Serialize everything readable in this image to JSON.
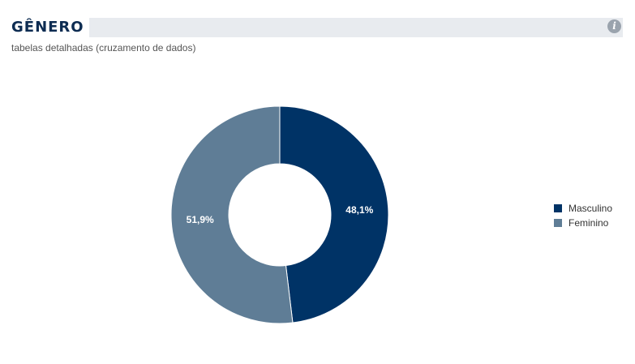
{
  "header": {
    "title": "GÊNERO",
    "subtitle": "tabelas detalhadas (cruzamento de dados)",
    "info_icon": "info-icon"
  },
  "chart_data": {
    "type": "pie",
    "variant": "donut",
    "title": "GÊNERO",
    "subtitle": "tabelas detalhadas (cruzamento de dados)",
    "legend_position": "right",
    "categories": [
      "Masculino",
      "Feminino"
    ],
    "values": [
      48.1,
      51.9
    ],
    "data_labels": [
      "48,1%",
      "51,9%"
    ],
    "colors": [
      "#003366",
      "#5f7d96"
    ]
  }
}
